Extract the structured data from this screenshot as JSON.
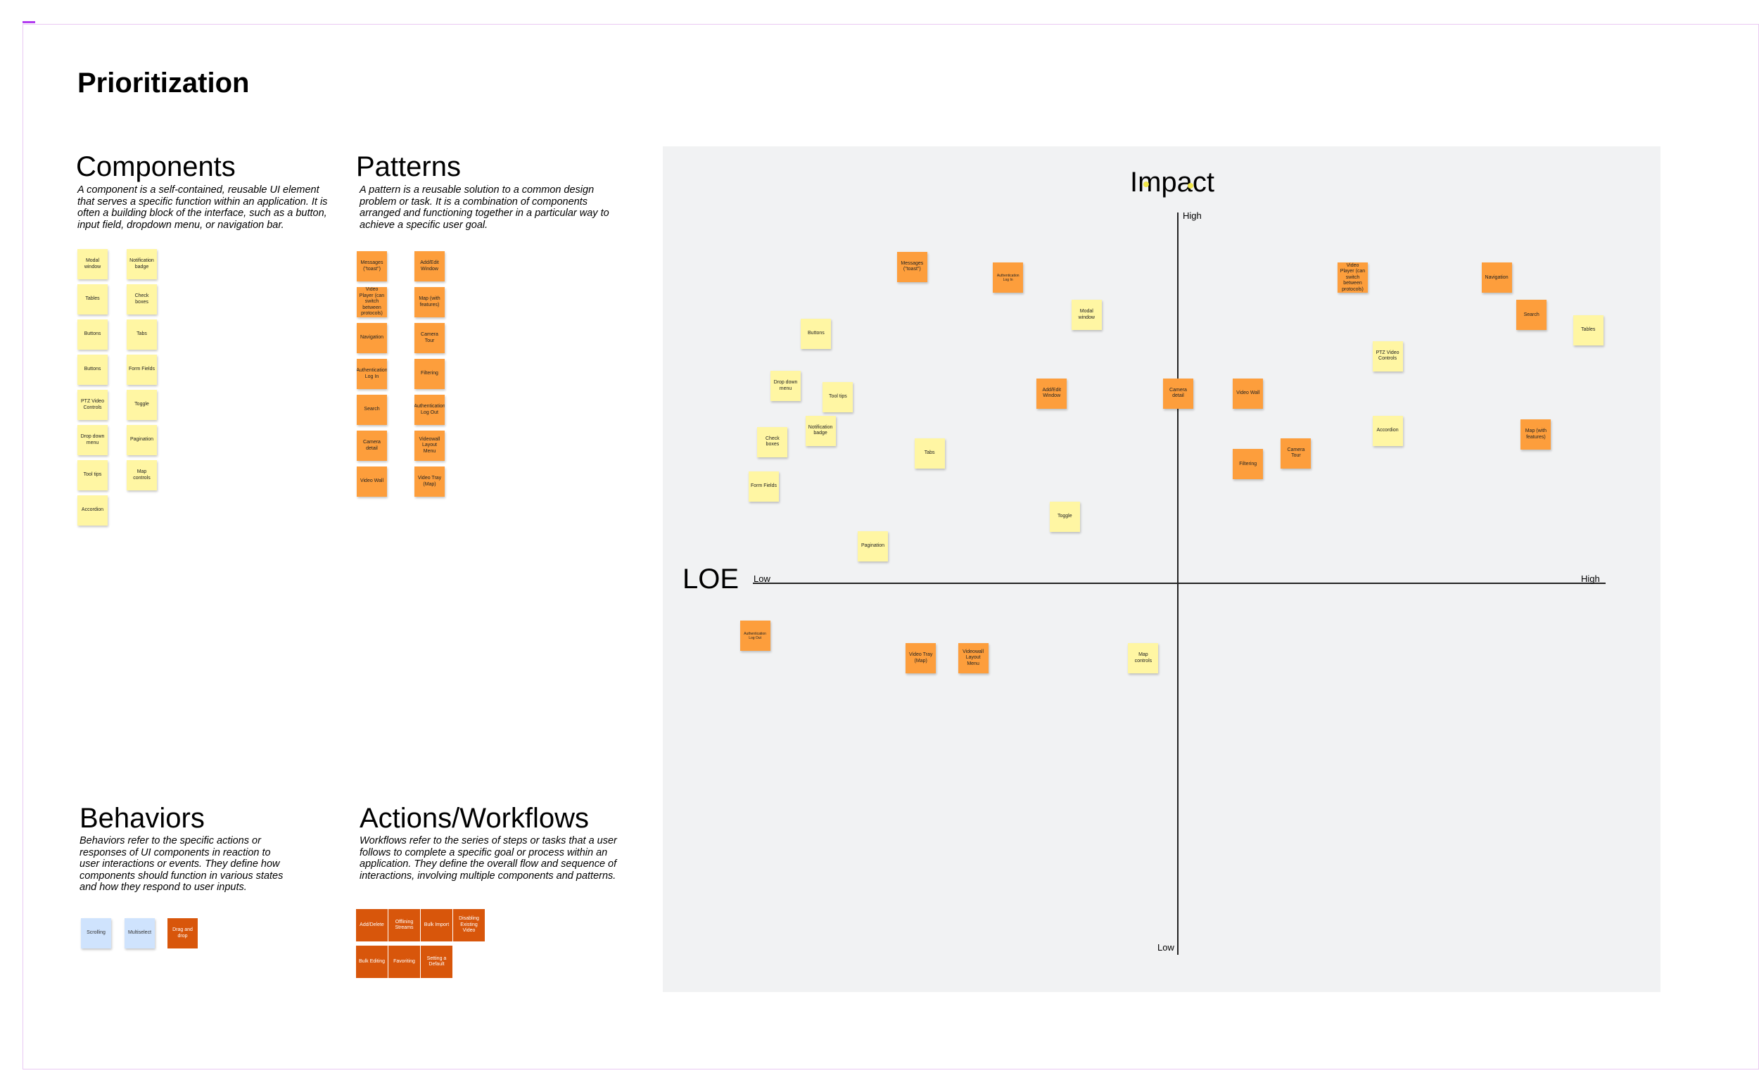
{
  "page_title": "Prioritization",
  "components": {
    "title": "Components",
    "description": "A component is a self-contained, reusable UI element that serves a specific function within an application. It is often a building block of the interface, such as a button, input field, dropdown menu, or navigation bar.",
    "stickies": [
      {
        "label": "Modal window",
        "color": "yellow"
      },
      {
        "label": "Notification badge",
        "color": "yellow"
      },
      {
        "label": "Tables",
        "color": "yellow"
      },
      {
        "label": "Check boxes",
        "color": "yellow"
      },
      {
        "label": "Buttons",
        "color": "yellow"
      },
      {
        "label": "Tabs",
        "color": "yellow"
      },
      {
        "label": "Buttons",
        "color": "yellow"
      },
      {
        "label": "Form Fields",
        "color": "yellow"
      },
      {
        "label": "PTZ Video Controls",
        "color": "yellow"
      },
      {
        "label": "Toggle",
        "color": "yellow"
      },
      {
        "label": "Drop down menu",
        "color": "yellow"
      },
      {
        "label": "Pagination",
        "color": "yellow"
      },
      {
        "label": "Tool tips",
        "color": "yellow"
      },
      {
        "label": "Map controls",
        "color": "yellow"
      },
      {
        "label": "Accordion",
        "color": "yellow"
      }
    ]
  },
  "patterns": {
    "title": "Patterns",
    "description": "A pattern is a reusable solution to a common design problem or task. It is a combination of components arranged and functioning together in a particular way to achieve a specific user goal.",
    "stickies": [
      {
        "label": "Messages (\"toast\")",
        "color": "orange"
      },
      {
        "label": "Add/Edit Window",
        "color": "orange"
      },
      {
        "label": "Video Player (can switch between protocols)",
        "color": "orange"
      },
      {
        "label": "Map (with features)",
        "color": "orange"
      },
      {
        "label": "Navigation",
        "color": "orange"
      },
      {
        "label": "Camera Tour",
        "color": "orange"
      },
      {
        "label": "Authentication Log In",
        "color": "orange"
      },
      {
        "label": "Filtering",
        "color": "orange"
      },
      {
        "label": "Search",
        "color": "orange"
      },
      {
        "label": "Authentication Log Out",
        "color": "orange"
      },
      {
        "label": "Camera detail",
        "color": "orange"
      },
      {
        "label": "Videowall Layout Menu",
        "color": "orange"
      },
      {
        "label": "Video Wall",
        "color": "orange"
      },
      {
        "label": "Video Tray (Map)",
        "color": "orange"
      }
    ]
  },
  "behaviors": {
    "title": "Behaviors",
    "description": "Behaviors refer to the specific actions or responses of UI components in reaction to user interactions or events. They define how components should function in various states and how they respond to user inputs.",
    "stickies": [
      {
        "label": "Scrolling",
        "color": "blue"
      },
      {
        "label": "Multiselect",
        "color": "blue"
      },
      {
        "label": "Drag and drop",
        "color": "dark"
      }
    ]
  },
  "workflows": {
    "title": "Actions/Workflows",
    "description": "Workflows refer to the series of steps or tasks that a user follows to complete a specific goal or process within an application. They define the overall flow and sequence of interactions, involving multiple components and patterns.",
    "stickies": [
      {
        "label": "Add/Delete",
        "color": "dark"
      },
      {
        "label": "Offlining Streams",
        "color": "dark"
      },
      {
        "label": "Bulk Import",
        "color": "dark"
      },
      {
        "label": "Disabling Existing Video",
        "color": "dark"
      },
      {
        "label": "Bulk Editing",
        "color": "dark"
      },
      {
        "label": "Favoriting",
        "color": "dark"
      },
      {
        "label": "Setting a Default",
        "color": "dark"
      }
    ]
  },
  "matrix": {
    "y_axis_title": "Impact",
    "x_axis_title": "LOE",
    "y_high_label": "High",
    "y_low_label": "Low",
    "x_low_label": "Low",
    "x_high_label": "High",
    "items": [
      {
        "label": "Messages (\"toast\")",
        "color": "orange",
        "loe": -0.61,
        "impact": 0.85
      },
      {
        "label": "Authentication Log In",
        "color": "orange",
        "loe": -0.39,
        "impact": 0.82,
        "small": true
      },
      {
        "label": "Video Player (can switch between protocols)",
        "color": "orange",
        "loe": 0.4,
        "impact": 0.82
      },
      {
        "label": "Navigation",
        "color": "orange",
        "loe": 0.73,
        "impact": 0.82
      },
      {
        "label": "Modal window",
        "color": "yellow",
        "loe": -0.21,
        "impact": 0.72
      },
      {
        "label": "Search",
        "color": "orange",
        "loe": 0.81,
        "impact": 0.72
      },
      {
        "label": "Tables",
        "color": "yellow",
        "loe": 0.94,
        "impact": 0.68
      },
      {
        "label": "Buttons",
        "color": "yellow",
        "loe": -0.83,
        "impact": 0.67
      },
      {
        "label": "PTZ Video Controls",
        "color": "yellow",
        "loe": 0.48,
        "impact": 0.61
      },
      {
        "label": "Drop down menu",
        "color": "yellow",
        "loe": -0.9,
        "impact": 0.53
      },
      {
        "label": "Tool tips",
        "color": "yellow",
        "loe": -0.78,
        "impact": 0.5
      },
      {
        "label": "Add/Edit Window",
        "color": "orange",
        "loe": -0.29,
        "impact": 0.51
      },
      {
        "label": "Camera detail",
        "color": "orange",
        "loe": 0.0,
        "impact": 0.51
      },
      {
        "label": "Video Wall",
        "color": "orange",
        "loe": 0.16,
        "impact": 0.51
      },
      {
        "label": "Notification badge",
        "color": "yellow",
        "loe": -0.82,
        "impact": 0.41
      },
      {
        "label": "Check boxes",
        "color": "yellow",
        "loe": -0.93,
        "impact": 0.38
      },
      {
        "label": "Accordion",
        "color": "yellow",
        "loe": 0.48,
        "impact": 0.41
      },
      {
        "label": "Map (with features)",
        "color": "orange",
        "loe": 0.82,
        "impact": 0.4
      },
      {
        "label": "Tabs",
        "color": "yellow",
        "loe": -0.57,
        "impact": 0.35
      },
      {
        "label": "Camera Tour",
        "color": "orange",
        "loe": 0.27,
        "impact": 0.35
      },
      {
        "label": "Filtering",
        "color": "orange",
        "loe": 0.16,
        "impact": 0.32
      },
      {
        "label": "Form Fields",
        "color": "yellow",
        "loe": -0.95,
        "impact": 0.26
      },
      {
        "label": "Toggle",
        "color": "yellow",
        "loe": -0.26,
        "impact": 0.18
      },
      {
        "label": "Pagination",
        "color": "yellow",
        "loe": -0.7,
        "impact": 0.1
      },
      {
        "label": "Authentication Log Out",
        "color": "orange",
        "loe": -0.97,
        "impact": -0.14,
        "small": true
      },
      {
        "label": "Video Tray (Map)",
        "color": "orange",
        "loe": -0.59,
        "impact": -0.2
      },
      {
        "label": "Videowall Layout Menu",
        "color": "orange",
        "loe": -0.47,
        "impact": -0.2
      },
      {
        "label": "Map controls",
        "color": "yellow",
        "loe": -0.08,
        "impact": -0.2
      }
    ]
  }
}
